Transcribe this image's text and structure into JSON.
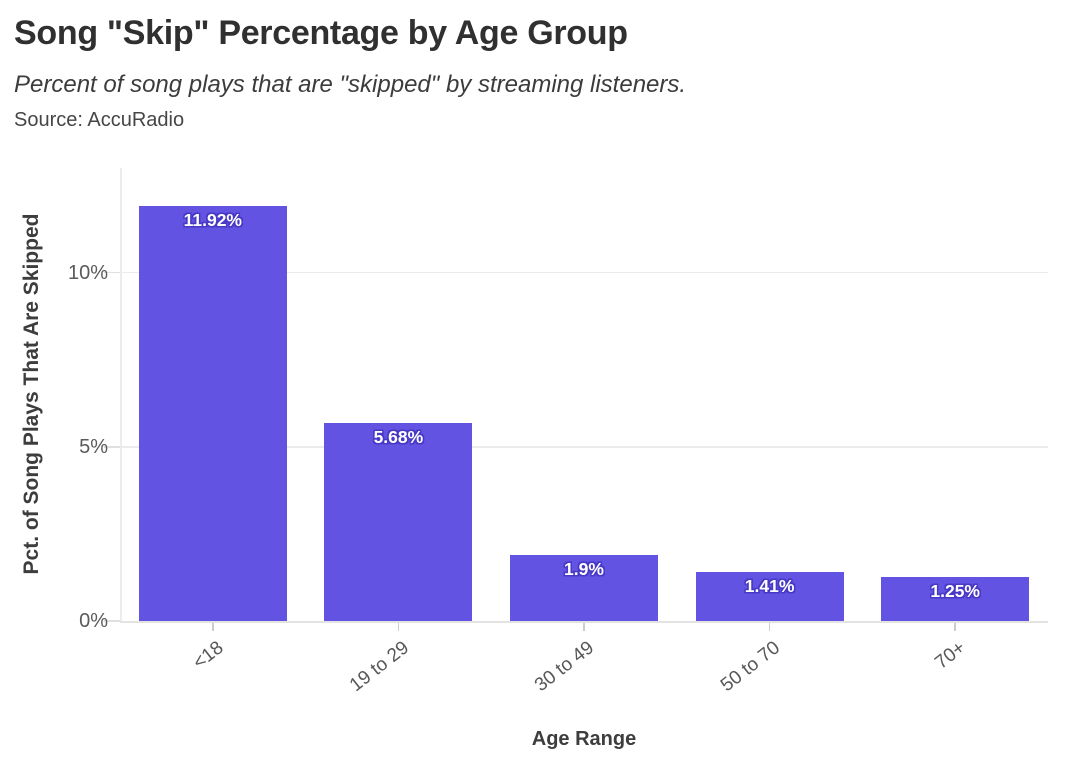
{
  "header": {
    "title": "Song \"Skip\" Percentage by Age Group",
    "subtitle": "Percent of song plays that are \"skipped\" by streaming listeners.",
    "source": "Source: AccuRadio"
  },
  "chart_data": {
    "type": "bar",
    "title": "Song \"Skip\" Percentage by Age Group",
    "subtitle": "Percent of song plays that are \"skipped\" by streaming listeners.",
    "source": "Source: AccuRadio",
    "categories": [
      "<18",
      "19 to 29",
      "30 to 49",
      "50 to 70",
      "70+"
    ],
    "values": [
      11.92,
      5.68,
      1.9,
      1.41,
      1.25
    ],
    "value_labels": [
      "11.92%",
      "5.68%",
      "1.9%",
      "1.41%",
      "1.25%"
    ],
    "xlabel": "Age Range",
    "ylabel": "Pct. of Song Plays That Are Skipped",
    "ylim": [
      0,
      13
    ],
    "yticks": [
      {
        "value": 0,
        "label": "0%"
      },
      {
        "value": 5,
        "label": "5%"
      },
      {
        "value": 10,
        "label": "10%"
      }
    ],
    "grid": "horizontal-only",
    "legend": "none",
    "colors": {
      "bar": "#6253e2",
      "bar_label_text": "#ffffff",
      "bar_label_halo": "#4838c6",
      "gridline": "#ebebeb",
      "axis_text": "#5a5a5a",
      "title_text": "#303030"
    }
  }
}
